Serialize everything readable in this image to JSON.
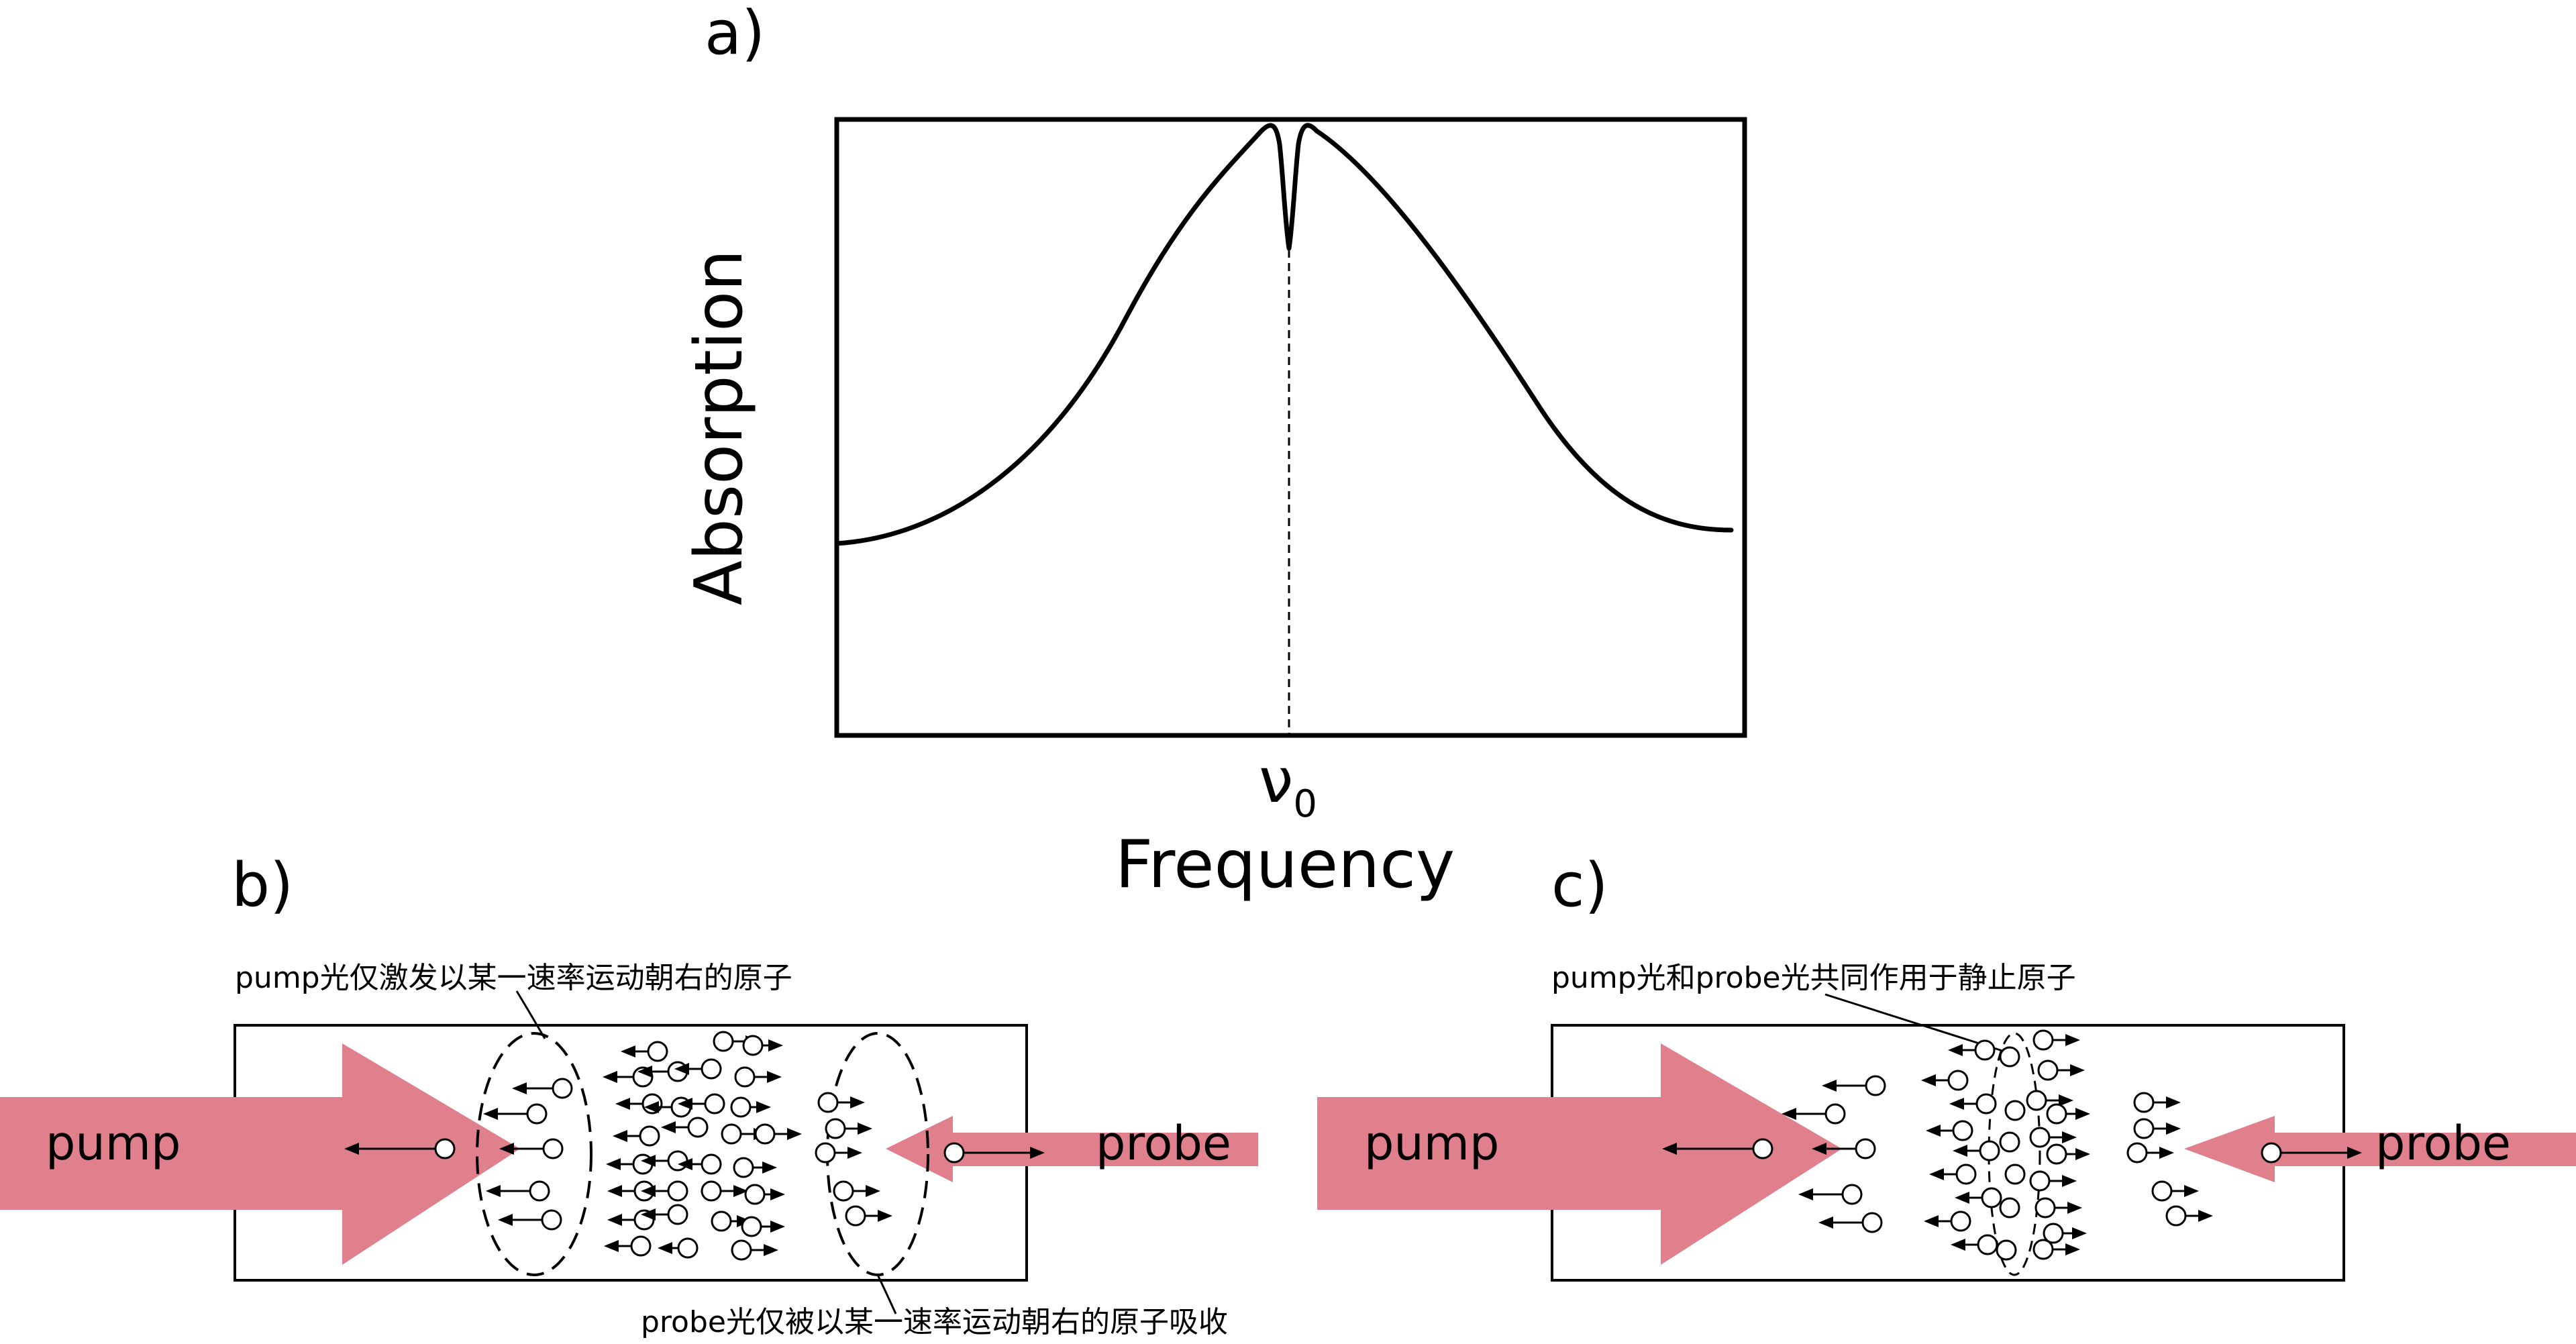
{
  "panels": {
    "a": {
      "label": "a)",
      "ylabel": "Absorption",
      "xlabel": "Frequency",
      "nu_symbol": "ν",
      "nu_sub": "0"
    },
    "b": {
      "label": "b)",
      "pump_label": "pump",
      "probe_label": "probe",
      "annotation_top": "pump光仅激发以某一速率运动朝右的原子",
      "annotation_bottom": "probe光仅被以某一速率运动朝右的原子吸收"
    },
    "c": {
      "label": "c)",
      "pump_label": "pump",
      "probe_label": "probe",
      "annotation_top": "pump光和probe光共同作用于静止原子"
    }
  },
  "colors": {
    "beam": "#e0808c",
    "line": "#000000",
    "background": "#ffffff"
  }
}
